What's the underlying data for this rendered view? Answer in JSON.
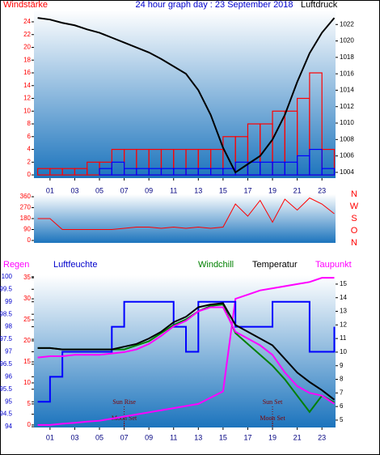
{
  "chart_data": [
    {
      "type": "bar-line",
      "title": "24 hour graph day : 23 September 2018",
      "ylabel": "Windstärke",
      "y2label": "Luftdruck",
      "xlim": [
        -0.3,
        24.1
      ],
      "xticks": [
        {
          "value": 1,
          "label": "01"
        },
        {
          "value": 3,
          "label": "03"
        },
        {
          "value": 5,
          "label": "05"
        },
        {
          "value": 7,
          "label": "07"
        },
        {
          "value": 9,
          "label": "09"
        },
        {
          "value": 11,
          "label": "11"
        },
        {
          "value": 13,
          "label": "13"
        },
        {
          "value": 15,
          "label": "15"
        },
        {
          "value": 17,
          "label": "17"
        },
        {
          "value": 19,
          "label": "19"
        },
        {
          "value": 21,
          "label": "21"
        },
        {
          "value": 23,
          "label": "23"
        }
      ],
      "ylim": [
        -0.5,
        25.9
      ],
      "yticks": [
        0,
        2,
        4,
        6,
        8,
        10,
        12,
        14,
        16,
        18,
        20,
        22,
        24
      ],
      "y2lim": [
        1003.3,
        1023.8
      ],
      "y2ticks": [
        1004,
        1006,
        1008,
        1010,
        1012,
        1014,
        1016,
        1018,
        1020,
        1022
      ],
      "x": [
        0,
        1,
        2,
        3,
        4,
        5,
        6,
        7,
        8,
        9,
        10,
        11,
        12,
        13,
        14,
        15,
        16,
        17,
        18,
        19,
        20,
        21,
        22,
        23,
        24
      ],
      "series": [
        {
          "color": "#ff0000",
          "values": [
            1,
            1,
            1,
            1,
            2,
            2,
            4,
            4,
            4,
            4,
            4,
            4,
            4,
            4,
            4,
            6,
            6,
            8,
            8,
            10,
            10,
            12,
            16,
            4,
            null
          ]
        },
        {
          "color": "#0000ff",
          "values": [
            0,
            0,
            0,
            0,
            0,
            1,
            2,
            1,
            1,
            1,
            1,
            1,
            1,
            1,
            1,
            1,
            2,
            2,
            2,
            2,
            2,
            3,
            4,
            1,
            null
          ]
        },
        {
          "color": "#000000",
          "axis": "y2",
          "values": [
            1022.8,
            1022.6,
            1022.2,
            1021.9,
            1021.4,
            1021,
            1020.4,
            1019.8,
            1019.2,
            1018.6,
            1017.8,
            1016.9,
            1016,
            1014,
            1011,
            1007,
            1004,
            1005,
            1006,
            1008,
            1011,
            1015,
            1018.5,
            1021,
            1022.8
          ]
        }
      ]
    },
    {
      "type": "line",
      "xlim": [
        -0.3,
        24.1
      ],
      "ylim": [
        -20,
        380
      ],
      "yticks": [
        0,
        90,
        180,
        270,
        360
      ],
      "direction_labels": [
        "N",
        "W",
        "S",
        "O",
        "N"
      ],
      "x": [
        0,
        1,
        2,
        3,
        4,
        5,
        6,
        7,
        8,
        9,
        10,
        11,
        12,
        13,
        14,
        15,
        16,
        17,
        18,
        19,
        20,
        21,
        22,
        23,
        24
      ],
      "series": [
        {
          "color": "#ff0000",
          "values": [
            180,
            180,
            90,
            90,
            90,
            90,
            90,
            100,
            110,
            110,
            100,
            110,
            100,
            110,
            100,
            110,
            300,
            200,
            330,
            150,
            340,
            250,
            350,
            300,
            220
          ]
        }
      ]
    },
    {
      "type": "line",
      "labels": [
        "Regen",
        "Luftfeuchte",
        "Windchill",
        "Temperatur",
        "Taupunkt"
      ],
      "xlim": [
        -0.3,
        24.1
      ],
      "xticks": [
        {
          "value": 1,
          "label": "01"
        },
        {
          "value": 3,
          "label": "03"
        },
        {
          "value": 5,
          "label": "05"
        },
        {
          "value": 7,
          "label": "07"
        },
        {
          "value": 9,
          "label": "09"
        },
        {
          "value": 11,
          "label": "11"
        },
        {
          "value": 13,
          "label": "13"
        },
        {
          "value": 15,
          "label": "15"
        },
        {
          "value": 17,
          "label": "17"
        },
        {
          "value": 19,
          "label": "19"
        },
        {
          "value": 21,
          "label": "21"
        },
        {
          "value": 23,
          "label": "23"
        }
      ],
      "ylim": [
        -0.6,
        35.6
      ],
      "yticks": [
        0,
        5,
        10,
        15,
        20,
        25,
        30,
        35
      ],
      "y2lim": [
        4.46,
        15.65
      ],
      "y2ticks": [
        5,
        6,
        7,
        8,
        9,
        10,
        11,
        12,
        13,
        14,
        15
      ],
      "y3lim": [
        93.97,
        100.06
      ],
      "y3ticks": [
        94,
        94.5,
        95,
        95.5,
        96,
        96.5,
        97,
        97.5,
        98,
        98.5,
        99,
        99.5,
        100
      ],
      "annotations": [
        {
          "text": "Sun Rise",
          "x": 7,
          "row": 0
        },
        {
          "text": "Sun Set",
          "x": 19,
          "row": 0
        },
        {
          "text": "Moon Set",
          "x": 7,
          "row": 1
        },
        {
          "text": "Moon Set",
          "x": 19,
          "row": 1
        }
      ],
      "x": [
        0,
        1,
        2,
        3,
        4,
        5,
        6,
        7,
        8,
        9,
        10,
        11,
        12,
        13,
        14,
        15,
        16,
        17,
        18,
        19,
        20,
        21,
        22,
        23,
        24
      ],
      "series": [
        {
          "color": "#ff00ff",
          "values": [
            0,
            0,
            0.3,
            0.5,
            0.8,
            1,
            1.5,
            2,
            2.5,
            3,
            3.5,
            4,
            4.5,
            5,
            6.5,
            8,
            30,
            31,
            32,
            32.5,
            33,
            33.5,
            34,
            35,
            35
          ]
        },
        {
          "color": "#0000ff",
          "axis": "y3",
          "step": true,
          "values": [
            95,
            96,
            97,
            97,
            97,
            97,
            98,
            99,
            99,
            99,
            99,
            98,
            97,
            99,
            99,
            99,
            98,
            98,
            98,
            99,
            99,
            99,
            97,
            97,
            98
          ]
        },
        {
          "color": "#008000",
          "axis": "y2",
          "values": [
            10.3,
            10.3,
            10.2,
            10.2,
            10.2,
            10.2,
            10.2,
            10.2,
            10.5,
            10.8,
            11.4,
            12,
            12.4,
            13,
            13.4,
            13.5,
            11.4,
            10.6,
            9.8,
            9,
            8,
            6.8,
            5.6,
            6.8,
            6.3
          ]
        },
        {
          "color": "#000000",
          "axis": "y2",
          "values": [
            10.3,
            10.3,
            10.2,
            10.2,
            10.2,
            10.2,
            10.2,
            10.4,
            10.6,
            11,
            11.5,
            12.2,
            12.6,
            13.3,
            13.5,
            13.6,
            12,
            11.5,
            11,
            10.5,
            9.5,
            8.5,
            7.8,
            7.2,
            6.5
          ]
        },
        {
          "color": "#ff00ff",
          "axis": "y2",
          "values": [
            9.6,
            9.7,
            9.7,
            9.8,
            9.8,
            9.8,
            9.9,
            10,
            10.2,
            10.6,
            11.2,
            11.9,
            12.3,
            13,
            13.3,
            13.3,
            11.5,
            11,
            10.5,
            9.8,
            8.5,
            7.5,
            7,
            6.8,
            6.2
          ]
        }
      ]
    }
  ]
}
